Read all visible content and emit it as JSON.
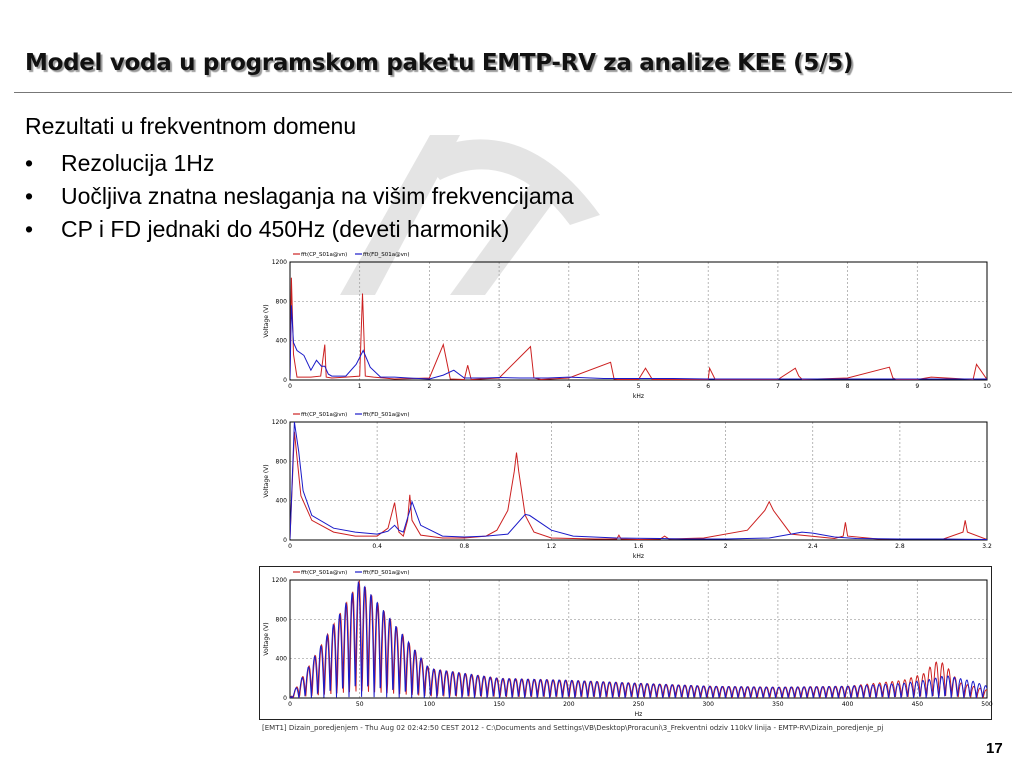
{
  "slide": {
    "title": "Model voda u programskom paketu EMTP-RV za analize KEE (5/5)",
    "subtitle": "Rezultati u frekventnom domenu",
    "bullet_symbol": "•",
    "bullets": [
      "Rezolucija 1Hz",
      "Uočljiva znatna neslaganja na višim frekvencijama",
      "CP i FD jednaki do 450Hz (deveti harmonik)"
    ],
    "footer": "[EMT1] Dizain_poredjenjem - Thu Aug 02 02:42:50 CEST 2012 - C:\\Documents and Settings\\VB\\Desktop\\Proracuni\\3_Frekventni odziv 110kV linija - EMTP-RV\\Dizain_poredjenje_pj",
    "page_number": "17"
  },
  "colors": {
    "cp_series": "#cc2020",
    "fd_series": "#1a1ac8",
    "grid": "#9a9a9a",
    "axis": "#000000",
    "watermark": "#888888"
  },
  "chart_data": [
    {
      "type": "line",
      "xlabel": "kHz",
      "ylabel": "Voltage (V)",
      "xlim": [
        0,
        10
      ],
      "ylim": [
        0,
        1200
      ],
      "xticks": [
        0,
        1,
        2,
        3,
        4,
        5,
        6,
        7,
        8,
        9,
        10
      ],
      "yticks": [
        0,
        400,
        800,
        1200
      ],
      "grid": true,
      "legend_position": "top-left",
      "series": [
        {
          "name": "fft(CP_S01a@vn)",
          "x": [
            0,
            0.02,
            0.05,
            0.1,
            0.3,
            0.44,
            0.5,
            0.52,
            0.6,
            0.8,
            1.0,
            1.04,
            1.08,
            1.2,
            1.5,
            2.0,
            2.2,
            2.3,
            2.5,
            2.55,
            2.6,
            3.0,
            3.45,
            3.5,
            3.6,
            4.0,
            4.6,
            4.65,
            4.7,
            5.0,
            5.1,
            5.2,
            6.0,
            6.02,
            6.1,
            7.0,
            7.25,
            7.3,
            7.35,
            8.0,
            8.6,
            8.65,
            8.7,
            9.0,
            9.2,
            9.8,
            9.85,
            10.0
          ],
          "y": [
            10,
            1040,
            260,
            30,
            30,
            40,
            360,
            30,
            20,
            30,
            40,
            880,
            40,
            30,
            10,
            20,
            360,
            10,
            5,
            150,
            5,
            20,
            340,
            20,
            5,
            20,
            180,
            10,
            5,
            5,
            120,
            5,
            5,
            120,
            5,
            5,
            120,
            40,
            5,
            20,
            130,
            20,
            5,
            5,
            30,
            5,
            160,
            5
          ]
        },
        {
          "name": "fft(FD_S01a@vn)",
          "x": [
            0,
            0.02,
            0.05,
            0.1,
            0.2,
            0.3,
            0.38,
            0.45,
            0.5,
            0.55,
            0.6,
            0.8,
            0.95,
            1.05,
            1.15,
            1.3,
            1.5,
            1.7,
            2.0,
            2.2,
            2.35,
            2.5,
            2.8,
            3.0,
            3.3,
            3.5,
            3.7,
            4.0,
            4.5,
            5.0,
            5.5,
            6.0,
            6.5,
            7.0,
            7.5,
            8.0,
            8.5,
            9.0,
            9.5,
            10.0
          ],
          "y": [
            10,
            760,
            380,
            300,
            250,
            100,
            200,
            140,
            140,
            60,
            40,
            40,
            160,
            300,
            130,
            30,
            30,
            20,
            10,
            50,
            100,
            20,
            20,
            25,
            20,
            20,
            20,
            30,
            15,
            15,
            15,
            10,
            10,
            10,
            10,
            10,
            10,
            10,
            10,
            10
          ]
        }
      ]
    },
    {
      "type": "line",
      "xlabel": "kHz",
      "ylabel": "Voltage (V)",
      "xlim": [
        0,
        3.2
      ],
      "ylim": [
        0,
        1200
      ],
      "xticks": [
        0,
        0.4,
        0.8,
        1.2,
        1.6,
        2,
        2.4,
        2.8,
        3.2
      ],
      "yticks": [
        0,
        400,
        800,
        1200
      ],
      "grid": true,
      "legend_position": "top-left",
      "series": [
        {
          "name": "fft(CP_S01a@vn)",
          "x": [
            0,
            0.02,
            0.05,
            0.1,
            0.2,
            0.3,
            0.4,
            0.45,
            0.48,
            0.5,
            0.52,
            0.54,
            0.55,
            0.56,
            0.6,
            0.7,
            0.8,
            0.9,
            0.95,
            1.0,
            1.03,
            1.04,
            1.05,
            1.08,
            1.12,
            1.2,
            1.4,
            1.5,
            1.51,
            1.52,
            1.6,
            1.7,
            1.72,
            1.74,
            1.9,
            2.1,
            2.18,
            2.2,
            2.22,
            2.3,
            2.5,
            2.54,
            2.55,
            2.56,
            2.7,
            3.0,
            3.09,
            3.1,
            3.11,
            3.2
          ],
          "y": [
            10,
            1100,
            450,
            200,
            80,
            40,
            40,
            120,
            380,
            80,
            40,
            200,
            460,
            200,
            50,
            20,
            20,
            40,
            100,
            300,
            700,
            890,
            700,
            250,
            80,
            20,
            10,
            10,
            50,
            10,
            5,
            10,
            40,
            10,
            20,
            100,
            300,
            390,
            300,
            60,
            15,
            40,
            180,
            40,
            10,
            10,
            80,
            200,
            80,
            5
          ]
        },
        {
          "name": "fft(FD_S01a@vn)",
          "x": [
            0,
            0.02,
            0.04,
            0.06,
            0.1,
            0.2,
            0.3,
            0.4,
            0.45,
            0.48,
            0.5,
            0.52,
            0.55,
            0.56,
            0.6,
            0.7,
            0.8,
            0.9,
            1.0,
            1.08,
            1.1,
            1.2,
            1.3,
            1.5,
            1.7,
            1.8,
            2.0,
            2.2,
            2.3,
            2.35,
            2.4,
            2.5,
            2.6,
            2.8,
            3.0,
            3.2
          ],
          "y": [
            10,
            1200,
            900,
            500,
            250,
            120,
            80,
            60,
            90,
            150,
            100,
            80,
            300,
            390,
            150,
            40,
            30,
            40,
            60,
            260,
            250,
            100,
            40,
            20,
            15,
            10,
            10,
            20,
            60,
            80,
            70,
            30,
            15,
            10,
            10,
            5
          ]
        }
      ]
    },
    {
      "type": "line",
      "xlabel": "Hz",
      "ylabel": "Voltage (V)",
      "xlim": [
        0,
        500
      ],
      "ylim": [
        0,
        1200
      ],
      "xticks": [
        0,
        50,
        100,
        150,
        200,
        250,
        300,
        350,
        400,
        450,
        500
      ],
      "yticks": [
        0,
        400,
        800,
        1200
      ],
      "grid": true,
      "legend_position": "top-left",
      "series": [
        {
          "name": "fft(CP_S01a@vn)",
          "x": [
            0,
            50,
            100,
            150,
            200,
            250,
            300,
            350,
            400,
            420,
            440,
            455,
            460,
            465,
            470,
            475,
            480,
            490,
            500
          ],
          "y": [
            0,
            1200,
            300,
            200,
            180,
            150,
            120,
            110,
            120,
            150,
            180,
            250,
            330,
            380,
            340,
            250,
            160,
            120,
            80
          ],
          "envelope": true
        },
        {
          "name": "fft(FD_S01a@vn)",
          "x": [
            0,
            50,
            100,
            150,
            200,
            250,
            300,
            350,
            400,
            440,
            460,
            470,
            480,
            490,
            500
          ],
          "y": [
            0,
            1200,
            300,
            200,
            180,
            150,
            120,
            110,
            120,
            150,
            190,
            230,
            200,
            170,
            120
          ],
          "envelope": true
        }
      ]
    }
  ]
}
